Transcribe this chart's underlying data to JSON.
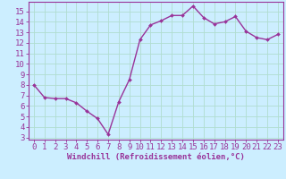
{
  "x": [
    0,
    1,
    2,
    3,
    4,
    5,
    6,
    7,
    8,
    9,
    10,
    11,
    12,
    13,
    14,
    15,
    16,
    17,
    18,
    19,
    20,
    21,
    22,
    23
  ],
  "y": [
    8.0,
    6.8,
    6.7,
    6.7,
    6.3,
    5.5,
    4.8,
    3.3,
    6.4,
    8.5,
    12.3,
    13.7,
    14.1,
    14.6,
    14.6,
    15.5,
    14.4,
    13.8,
    14.0,
    14.5,
    13.1,
    12.5,
    12.3,
    12.8
  ],
  "line_color": "#993399",
  "marker": "D",
  "marker_size": 2,
  "bg_color": "#cceeff",
  "grid_color": "#aaddcc",
  "xlabel": "Windchill (Refroidissement éolien,°C)",
  "xlabel_color": "#993399",
  "tick_color": "#993399",
  "ylabel_ticks": [
    3,
    4,
    5,
    6,
    7,
    8,
    9,
    10,
    11,
    12,
    13,
    14,
    15
  ],
  "ylim": [
    2.8,
    15.9
  ],
  "xlim": [
    -0.5,
    23.5
  ],
  "line_width": 1.0,
  "font_size": 6.5
}
